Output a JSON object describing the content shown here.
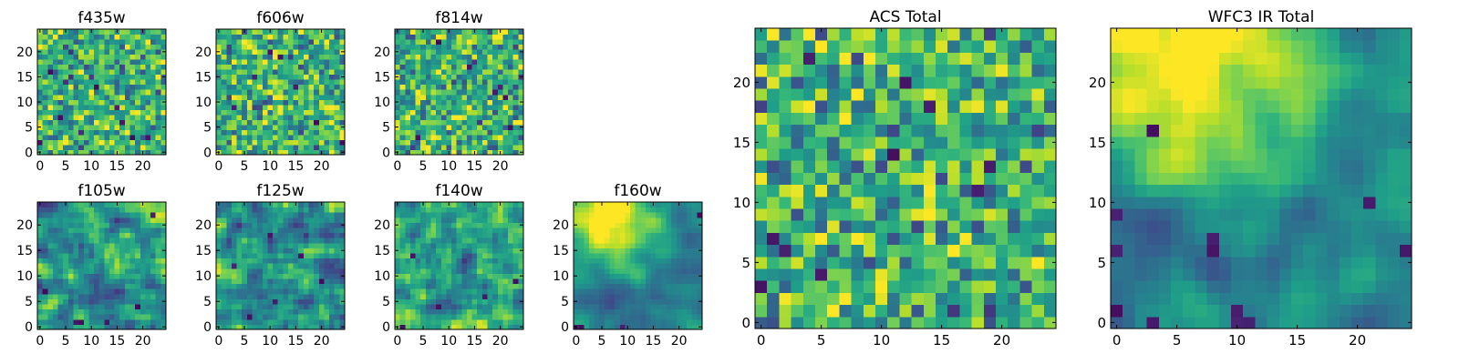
{
  "chart_data": [
    {
      "type": "heatmap",
      "title": "f435w",
      "colormap": "viridis",
      "grid_size": [
        25,
        25
      ],
      "xticks": [
        0,
        5,
        10,
        15,
        20
      ],
      "yticks": [
        0,
        5,
        10,
        15,
        20
      ],
      "xlim": [
        -0.5,
        24.5
      ],
      "ylim": [
        -0.5,
        24.5
      ],
      "pattern": "uncorrelated pixel noise",
      "dark_pixels": [
        [
          2,
          16
        ],
        [
          15,
          9
        ],
        [
          18,
          3
        ],
        [
          21,
          3
        ],
        [
          16,
          6
        ],
        [
          4,
          7
        ],
        [
          11,
          13
        ],
        [
          0,
          2
        ]
      ]
    },
    {
      "type": "heatmap",
      "title": "f606w",
      "colormap": "viridis",
      "grid_size": [
        25,
        25
      ],
      "xticks": [
        0,
        5,
        10,
        15,
        20
      ],
      "yticks": [
        0,
        5,
        10,
        15,
        20
      ],
      "xlim": [
        -0.5,
        24.5
      ],
      "ylim": [
        -0.5,
        24.5
      ],
      "pattern": "uncorrelated pixel noise",
      "dark_pixels": [
        [
          10,
          20
        ],
        [
          12,
          19
        ],
        [
          15,
          13
        ],
        [
          7,
          15
        ],
        [
          19,
          6
        ],
        [
          24,
          2
        ],
        [
          3,
          9
        ]
      ]
    },
    {
      "type": "heatmap",
      "title": "f814w",
      "colormap": "viridis",
      "grid_size": [
        25,
        25
      ],
      "xticks": [
        0,
        5,
        10,
        15,
        20
      ],
      "yticks": [
        0,
        5,
        10,
        15,
        20
      ],
      "xlim": [
        -0.5,
        24.5
      ],
      "ylim": [
        -0.5,
        24.5
      ],
      "pattern": "uncorrelated pixel noise",
      "dark_pixels": [
        [
          19,
          12
        ],
        [
          20,
          13
        ],
        [
          22,
          5
        ],
        [
          4,
          3
        ],
        [
          14,
          17
        ],
        [
          8,
          22
        ],
        [
          21,
          11
        ]
      ]
    },
    {
      "type": "heatmap",
      "title": "f105w",
      "colormap": "viridis",
      "grid_size": [
        25,
        25
      ],
      "xticks": [
        0,
        5,
        10,
        15,
        20
      ],
      "yticks": [
        0,
        5,
        10,
        15,
        20
      ],
      "xlim": [
        -0.5,
        24.5
      ],
      "ylim": [
        -0.5,
        24.5
      ],
      "pattern": "smooth correlated noise",
      "dark_pixels": [
        [
          7,
          1
        ],
        [
          8,
          1
        ],
        [
          13,
          1
        ],
        [
          22,
          22
        ],
        [
          1,
          7
        ],
        [
          19,
          4
        ]
      ]
    },
    {
      "type": "heatmap",
      "title": "f125w",
      "colormap": "viridis",
      "grid_size": [
        25,
        25
      ],
      "xticks": [
        0,
        5,
        10,
        15,
        20
      ],
      "yticks": [
        0,
        5,
        10,
        15,
        20
      ],
      "xlim": [
        -0.5,
        24.5
      ],
      "ylim": [
        -0.5,
        24.5
      ],
      "pattern": "smooth correlated noise",
      "dark_pixels": [
        [
          3,
          12
        ],
        [
          11,
          5
        ],
        [
          16,
          14
        ],
        [
          6,
          2
        ],
        [
          20,
          9
        ],
        [
          10,
          18
        ]
      ]
    },
    {
      "type": "heatmap",
      "title": "f140w",
      "colormap": "viridis",
      "grid_size": [
        25,
        25
      ],
      "xticks": [
        0,
        5,
        10,
        15,
        20
      ],
      "yticks": [
        0,
        5,
        10,
        15,
        20
      ],
      "xlim": [
        -0.5,
        24.5
      ],
      "ylim": [
        -0.5,
        24.5
      ],
      "pattern": "smooth correlated noise",
      "dark_pixels": [
        [
          3,
          14
        ],
        [
          23,
          9
        ],
        [
          8,
          4
        ],
        [
          17,
          6
        ],
        [
          1,
          0
        ]
      ]
    },
    {
      "type": "heatmap",
      "title": "f160w",
      "colormap": "viridis",
      "grid_size": [
        25,
        25
      ],
      "xticks": [
        0,
        5,
        10,
        15,
        20
      ],
      "yticks": [
        0,
        5,
        10,
        15,
        20
      ],
      "xlim": [
        -0.5,
        24.5
      ],
      "ylim": [
        -0.5,
        24.5
      ],
      "pattern": "smooth, bright region upper-left, darker at bottom and edges",
      "bright_center": [
        6,
        21
      ],
      "dark_pixels": [
        [
          9,
          0
        ],
        [
          0,
          0
        ],
        [
          1,
          0
        ],
        [
          24,
          22
        ]
      ]
    },
    {
      "type": "heatmap",
      "title": "ACS Total",
      "colormap": "viridis",
      "grid_size": [
        25,
        25
      ],
      "xticks": [
        0,
        5,
        10,
        15,
        20
      ],
      "yticks": [
        0,
        5,
        10,
        15,
        20
      ],
      "xlim": [
        -0.5,
        24.5
      ],
      "ylim": [
        -0.5,
        24.5
      ],
      "pattern": "uncorrelated pixel noise",
      "dark_pixels": [
        [
          4,
          22
        ],
        [
          12,
          20
        ],
        [
          11,
          14
        ],
        [
          19,
          13
        ],
        [
          1,
          7
        ],
        [
          5,
          4
        ],
        [
          0,
          3
        ],
        [
          14,
          18
        ],
        [
          18,
          11
        ],
        [
          2,
          6
        ]
      ]
    },
    {
      "type": "heatmap",
      "title": "WFC3 IR Total",
      "colormap": "viridis",
      "grid_size": [
        25,
        25
      ],
      "xticks": [
        0,
        5,
        10,
        15,
        20
      ],
      "yticks": [
        0,
        5,
        10,
        15,
        20
      ],
      "xlim": [
        -0.5,
        24.5
      ],
      "ylim": [
        -0.5,
        24.5
      ],
      "pattern": "smooth, bright region upper-left, darker lower-left and right edge",
      "bright_center": [
        6,
        22
      ],
      "dark_pixels": [
        [
          10,
          1
        ],
        [
          11,
          0
        ],
        [
          10,
          0
        ],
        [
          8,
          7
        ],
        [
          8,
          6
        ],
        [
          3,
          16
        ],
        [
          21,
          10
        ],
        [
          24,
          6
        ],
        [
          0,
          9
        ],
        [
          0,
          1
        ],
        [
          3,
          0
        ],
        [
          0,
          6
        ]
      ]
    }
  ]
}
